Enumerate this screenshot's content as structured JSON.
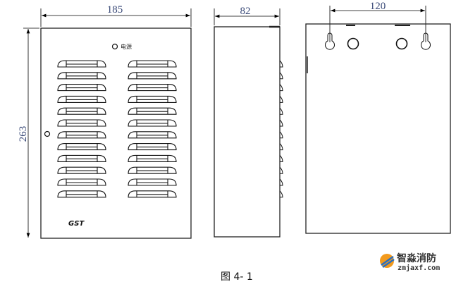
{
  "figure": {
    "caption": "图 4- 1",
    "front_view": {
      "width_dim": "185",
      "height_dim": "263",
      "indicator_label": "电源",
      "brand_logo": "GST",
      "louver_rows": 12,
      "louver_columns": 2
    },
    "side_view": {
      "depth_dim": "82"
    },
    "back_view": {
      "hole_spacing_dim": "120"
    },
    "watermark": {
      "name": "智淼消防",
      "url": "zmjaxf.com"
    }
  }
}
